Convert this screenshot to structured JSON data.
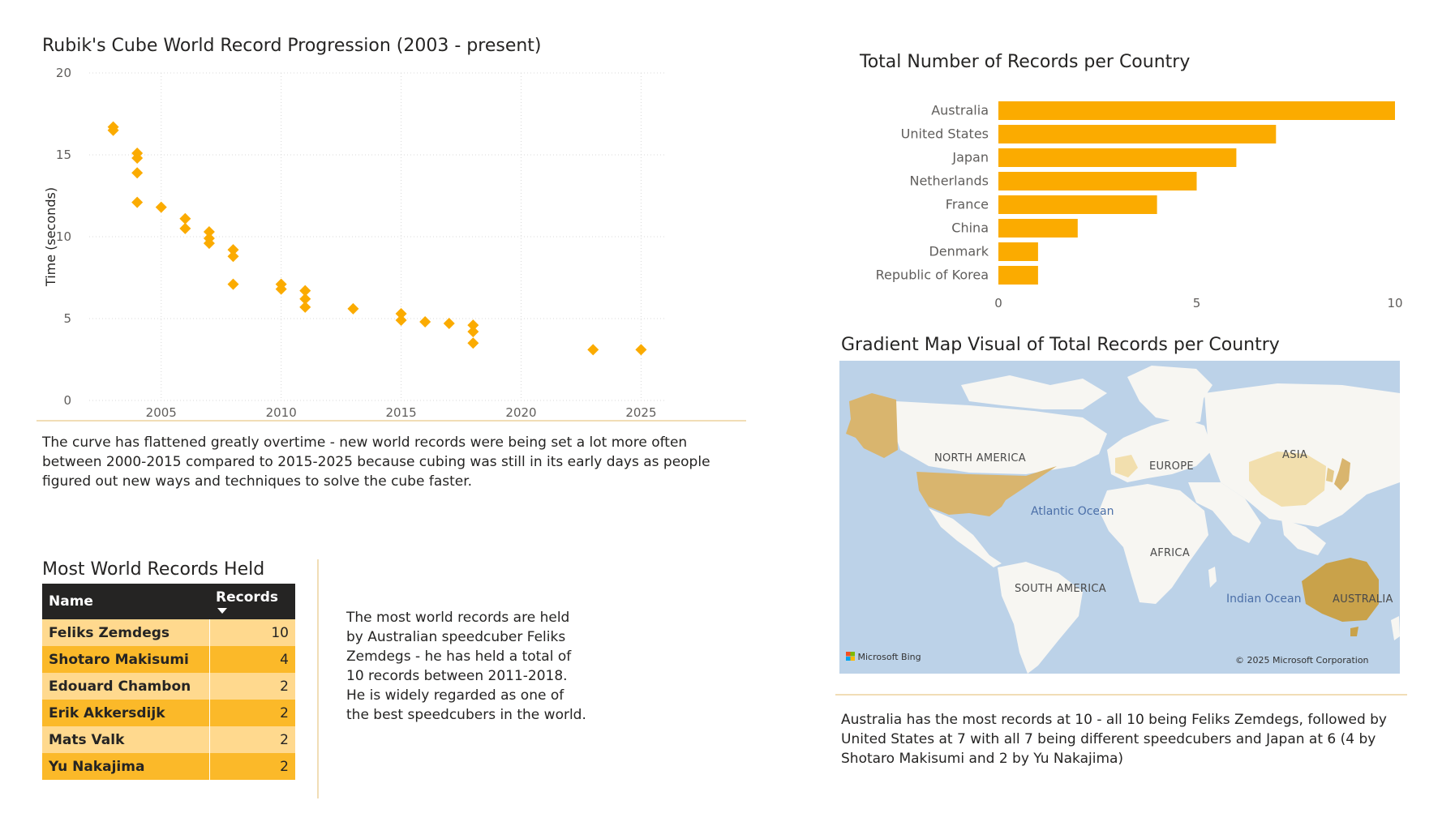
{
  "scatter": {
    "title": "Rubik's Cube World Record Progression (2003 - present)",
    "ylabel": "Time (seconds)"
  },
  "scatter_note": "The curve has flattened greatly overtime - new world records were being set a lot more often between 2000-2015 compared to 2015-2025 because cubing was still in its early days as people figured out new ways and techniques to solve the cube faster.",
  "bar": {
    "title": "Total Number of Records per Country"
  },
  "map": {
    "title": "Gradient Map Visual of Total Records per Country",
    "labels": {
      "north_america": "NORTH AMERICA",
      "europe": "EUROPE",
      "asia": "ASIA",
      "africa": "AFRICA",
      "south_america": "SOUTH AMERICA",
      "australia": "AUSTRALIA"
    },
    "oceans": {
      "atlantic": "Atlantic Ocean",
      "indian": "Indian Ocean"
    },
    "provider": "Microsoft Bing",
    "copyright": "© 2025 Microsoft Corporation",
    "colors": {
      "high": "#c9a24a",
      "mid": "#d9b56e",
      "low": "#f2dfae",
      "land": "#f7f6f2",
      "water": "#bcd2e8"
    }
  },
  "map_note": "Australia has the most records at 10 - all 10 being Feliks Zemdegs, followed by United States at 7 with all 7 being different speedcubers and Japan at 6 (4 by Shotaro Makisumi and 2 by Yu Nakajima)",
  "table": {
    "title": "Most World Records Held",
    "headers": {
      "name": "Name",
      "records": "Records"
    },
    "rows": [
      {
        "name": "Feliks Zemdegs",
        "records": "10"
      },
      {
        "name": "Shotaro Makisumi",
        "records": "4"
      },
      {
        "name": "Edouard Chambon",
        "records": "2"
      },
      {
        "name": "Erik Akkersdijk",
        "records": "2"
      },
      {
        "name": "Mats Valk",
        "records": "2"
      },
      {
        "name": "Yu Nakajima",
        "records": "2"
      }
    ]
  },
  "table_note": "The most world records are held by Australian speedcuber Feliks Zemdegs - he has held a total of 10 records between 2011-2018. He is widely regarded as one of the best speedcubers in the world.",
  "chart_data": [
    {
      "type": "scatter",
      "title": "Rubik's Cube World Record Progression (2003 - present)",
      "xlabel": "",
      "ylabel": "Time (seconds)",
      "xlim": [
        2002,
        2026
      ],
      "ylim": [
        0,
        20
      ],
      "xticks": [
        "2005",
        "2010",
        "2015",
        "2020",
        "2025"
      ],
      "yticks": [
        "0",
        "5",
        "10",
        "15",
        "20"
      ],
      "grid": true,
      "color": "#fbab00",
      "points": [
        {
          "x": 2003.0,
          "y": 16.7
        },
        {
          "x": 2003.0,
          "y": 16.5
        },
        {
          "x": 2004.0,
          "y": 15.1
        },
        {
          "x": 2004.0,
          "y": 14.8
        },
        {
          "x": 2004.0,
          "y": 13.9
        },
        {
          "x": 2004.0,
          "y": 12.1
        },
        {
          "x": 2005.0,
          "y": 11.8
        },
        {
          "x": 2006.0,
          "y": 11.1
        },
        {
          "x": 2006.0,
          "y": 10.5
        },
        {
          "x": 2007.0,
          "y": 10.3
        },
        {
          "x": 2007.0,
          "y": 9.9
        },
        {
          "x": 2007.0,
          "y": 9.6
        },
        {
          "x": 2008.0,
          "y": 9.2
        },
        {
          "x": 2008.0,
          "y": 8.8
        },
        {
          "x": 2008.0,
          "y": 7.1
        },
        {
          "x": 2010.0,
          "y": 7.1
        },
        {
          "x": 2010.0,
          "y": 6.8
        },
        {
          "x": 2011.0,
          "y": 6.7
        },
        {
          "x": 2011.0,
          "y": 6.2
        },
        {
          "x": 2011.0,
          "y": 5.7
        },
        {
          "x": 2013.0,
          "y": 5.6
        },
        {
          "x": 2015.0,
          "y": 5.3
        },
        {
          "x": 2015.0,
          "y": 4.9
        },
        {
          "x": 2016.0,
          "y": 4.8
        },
        {
          "x": 2017.0,
          "y": 4.7
        },
        {
          "x": 2018.0,
          "y": 4.6
        },
        {
          "x": 2018.0,
          "y": 4.2
        },
        {
          "x": 2018.0,
          "y": 3.5
        },
        {
          "x": 2023.0,
          "y": 3.1
        },
        {
          "x": 2025.0,
          "y": 3.1
        }
      ]
    },
    {
      "type": "bar",
      "orientation": "horizontal",
      "title": "Total Number of Records per Country",
      "xlabel": "",
      "ylabel": "",
      "xlim": [
        0,
        10
      ],
      "xticks": [
        "0",
        "5",
        "10"
      ],
      "color": "#fbab00",
      "categories": [
        "Australia",
        "United States",
        "Japan",
        "Netherlands",
        "France",
        "China",
        "Denmark",
        "Republic of Korea"
      ],
      "values": [
        10,
        7,
        6,
        5,
        4,
        2,
        1,
        1
      ]
    }
  ]
}
